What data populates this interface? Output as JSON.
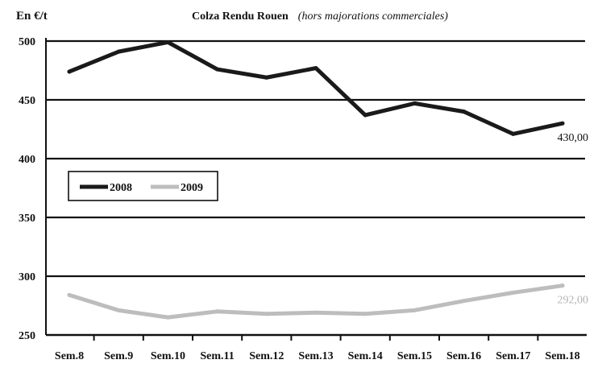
{
  "chart_data": {
    "type": "line",
    "title": "Colza Rendu Rouen",
    "subtitle": "(hors majorations commerciales)",
    "ylabel": "En €/t",
    "xlabel": "",
    "categories": [
      "Sem.8",
      "Sem.9",
      "Sem.10",
      "Sem.11",
      "Sem.12",
      "Sem.13",
      "Sem.14",
      "Sem.15",
      "Sem.16",
      "Sem.17",
      "Sem.18"
    ],
    "ylim": [
      250,
      500
    ],
    "yticks": [
      250,
      300,
      350,
      400,
      450,
      500
    ],
    "grid": "horizontal",
    "legend_position": "left",
    "series": [
      {
        "name": "2008",
        "color": "#1a1a1a",
        "values": [
          474,
          491,
          499,
          476,
          469,
          477,
          437,
          447,
          440,
          421,
          430
        ],
        "end_label": "430,00"
      },
      {
        "name": "2009",
        "color": "#bdbdbd",
        "values": [
          284,
          271,
          265,
          270,
          268,
          269,
          268,
          271,
          279,
          286,
          292
        ],
        "end_label": "292,00"
      }
    ]
  }
}
